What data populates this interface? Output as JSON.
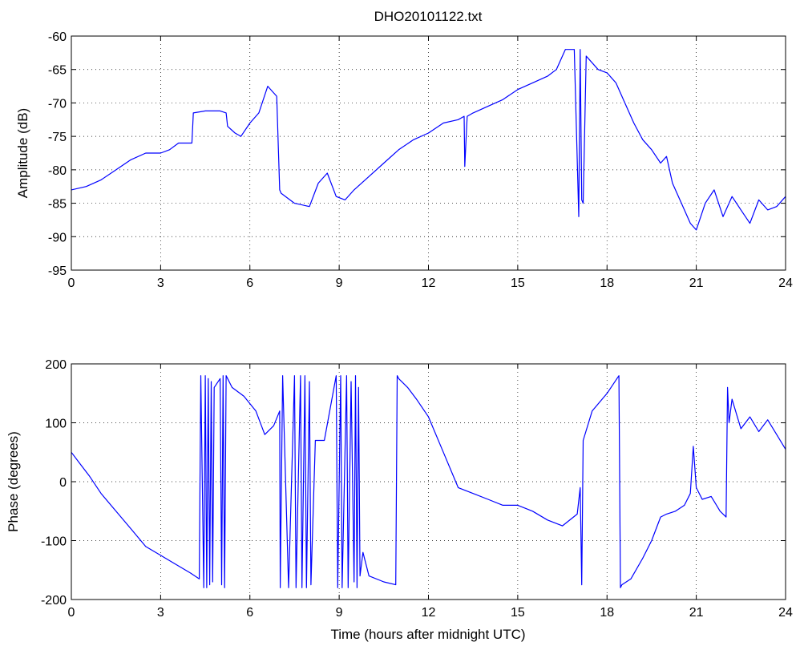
{
  "chart_data": [
    {
      "type": "line",
      "title": "DHO20101122.txt",
      "xlabel": "",
      "ylabel": "Amplitude (dB)",
      "xlim": [
        0,
        24
      ],
      "ylim": [
        -95,
        -60
      ],
      "grid": true,
      "x_ticks": [
        "0",
        "3",
        "6",
        "9",
        "12",
        "15",
        "18",
        "21",
        "24"
      ],
      "y_ticks": [
        "-95",
        "-90",
        "-85",
        "-80",
        "-75",
        "-70",
        "-65",
        "-60"
      ],
      "line_color": "#0000ff",
      "series": [
        {
          "x": [
            0,
            0.5,
            1,
            1.5,
            2,
            2.5,
            3,
            3.3,
            3.6,
            3.9,
            4.05,
            4.1,
            4.5,
            5,
            5.2,
            5.25,
            5.5,
            5.7,
            6,
            6.3,
            6.6,
            6.9,
            7.0,
            7.05,
            7.5,
            8,
            8.3,
            8.6,
            8.9,
            9.2,
            9.5,
            10,
            10.5,
            11,
            11.5,
            12,
            12.5,
            13,
            13.2,
            13.22,
            13.3,
            13.5,
            14,
            14.5,
            15,
            15.5,
            16,
            16.3,
            16.5,
            16.6,
            16.9,
            17.05,
            17.1,
            17.15,
            17.2,
            17.3,
            17.4,
            17.7,
            18,
            18.3,
            18.6,
            18.9,
            19.2,
            19.5,
            19.8,
            20,
            20.2,
            20.5,
            20.8,
            21.0,
            21.3,
            21.6,
            21.9,
            22.2,
            22.5,
            22.8,
            23.1,
            23.4,
            23.7,
            24
          ],
          "y": [
            -83,
            -82.5,
            -81.5,
            -80,
            -78.5,
            -77.5,
            -77.5,
            -77,
            -76,
            -76,
            -76,
            -71.5,
            -71.2,
            -71.2,
            -71.5,
            -73.5,
            -74.5,
            -75,
            -73,
            -71.5,
            -67.5,
            -69,
            -83,
            -83.5,
            -85,
            -85.5,
            -82,
            -80.5,
            -84,
            -84.5,
            -83,
            -81,
            -79,
            -77,
            -75.5,
            -74.5,
            -73,
            -72.5,
            -72,
            -79.5,
            -72,
            -71.5,
            -70.5,
            -69.5,
            -68,
            -67,
            -66,
            -65,
            -63,
            -62,
            -62,
            -87,
            -62,
            -84.5,
            -85,
            -63,
            -63.5,
            -65,
            -65.5,
            -67,
            -70,
            -73,
            -75.5,
            -77,
            -79,
            -78,
            -82,
            -85,
            -88,
            -89,
            -85,
            -83,
            -87,
            -84,
            -86,
            -88,
            -84.5,
            -86,
            -85.5,
            -84
          ]
        }
      ]
    },
    {
      "type": "line",
      "title": "",
      "xlabel": "Time (hours after midnight UTC)",
      "ylabel": "Phase (degrees)",
      "xlim": [
        0,
        24
      ],
      "ylim": [
        -200,
        200
      ],
      "grid": true,
      "x_ticks": [
        "0",
        "3",
        "6",
        "9",
        "12",
        "15",
        "18",
        "21",
        "24"
      ],
      "y_ticks": [
        "-200",
        "-100",
        "0",
        "100",
        "200"
      ],
      "line_color": "#0000ff",
      "series": [
        {
          "x": [
            0,
            0.3,
            0.6,
            1,
            1.5,
            2,
            2.5,
            3,
            3.5,
            4,
            4.3,
            4.35,
            4.45,
            4.5,
            4.55,
            4.6,
            4.65,
            4.7,
            4.75,
            4.8,
            5.0,
            5.05,
            5.1,
            5.15,
            5.2,
            5.4,
            5.8,
            6.2,
            6.5,
            6.8,
            7.0,
            7.02,
            7.1,
            7.3,
            7.5,
            7.55,
            7.7,
            7.75,
            7.85,
            7.9,
            8.0,
            8.05,
            8.2,
            8.5,
            8.9,
            8.95,
            9.05,
            9.1,
            9.25,
            9.3,
            9.4,
            9.5,
            9.55,
            9.6,
            9.65,
            9.7,
            9.8,
            10.0,
            10.5,
            10.9,
            10.95,
            11.0,
            11.3,
            11.6,
            12.0,
            12.5,
            13.0,
            13.5,
            14.0,
            14.5,
            15.0,
            15.5,
            16.0,
            16.5,
            17.0,
            17.1,
            17.15,
            17.2,
            17.5,
            18.0,
            18.4,
            18.45,
            18.5,
            18.8,
            19.2,
            19.5,
            19.8,
            20.0,
            20.3,
            20.6,
            20.8,
            20.9,
            21.0,
            21.2,
            21.5,
            21.8,
            22.0,
            22.05,
            22.1,
            22.2,
            22.5,
            22.8,
            23.1,
            23.4,
            23.7,
            24.0
          ],
          "y": [
            50,
            30,
            10,
            -20,
            -50,
            -80,
            -110,
            -125,
            -140,
            -155,
            -165,
            180,
            -180,
            180,
            -180,
            175,
            -175,
            170,
            -170,
            160,
            175,
            -175,
            180,
            -180,
            180,
            160,
            145,
            120,
            80,
            95,
            120,
            -180,
            180,
            -180,
            180,
            -180,
            180,
            -180,
            180,
            -180,
            170,
            -175,
            70,
            70,
            180,
            -180,
            180,
            -180,
            180,
            -180,
            170,
            -170,
            180,
            -180,
            160,
            -160,
            -120,
            -160,
            -170,
            -175,
            180,
            175,
            160,
            140,
            110,
            50,
            -10,
            -20,
            -30,
            -40,
            -40,
            -50,
            -65,
            -75,
            -55,
            -10,
            -175,
            70,
            120,
            150,
            180,
            -180,
            -175,
            -165,
            -130,
            -100,
            -60,
            -55,
            -50,
            -40,
            -20,
            60,
            -10,
            -30,
            -25,
            -50,
            -60,
            160,
            100,
            140,
            90,
            110,
            85,
            105,
            80,
            55
          ]
        }
      ]
    }
  ]
}
